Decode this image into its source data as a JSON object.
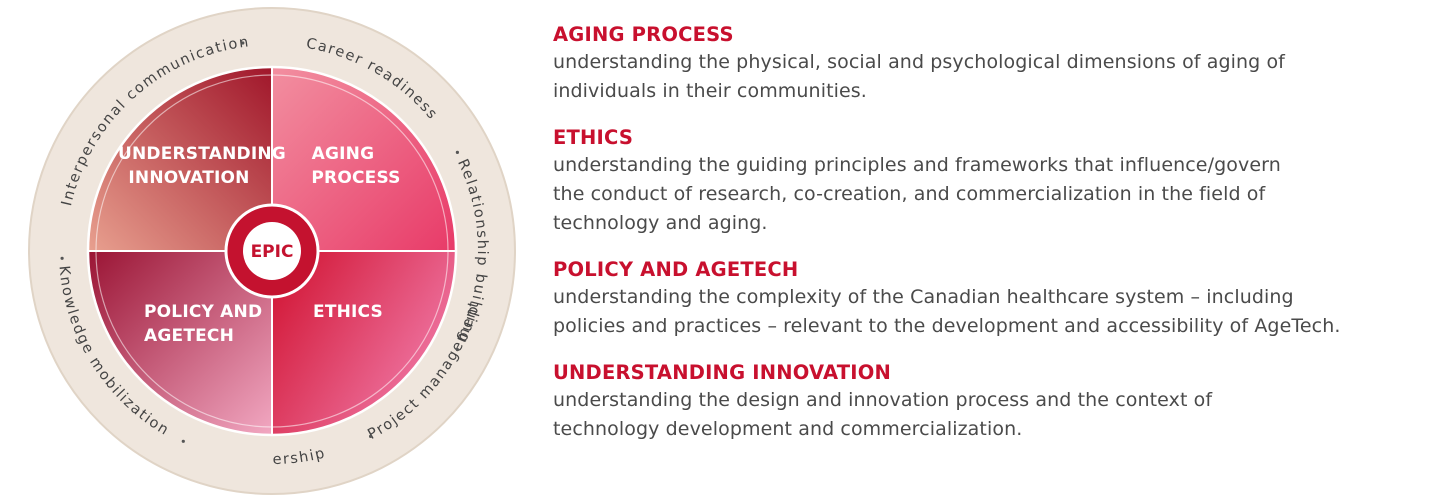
{
  "wheel": {
    "center_label": "EPIC",
    "quadrants": [
      {
        "id": "understanding-innovation",
        "lines": [
          "UNDERSTANDING",
          "INNOVATION"
        ]
      },
      {
        "id": "aging-process",
        "lines": [
          "AGING",
          "PROCESS"
        ]
      },
      {
        "id": "policy-agetech",
        "lines": [
          "POLICY AND",
          "AGETECH"
        ]
      },
      {
        "id": "ethics",
        "lines": [
          "ETHICS"
        ]
      }
    ],
    "ring_skills": [
      "Career readiness",
      "Relationship building",
      "Project management",
      "Leadership",
      "Knowledge mobilization",
      "Interpersonal communication"
    ],
    "colors": {
      "ring": "#efe6dd",
      "ring_border": "#e0d4c6",
      "divider": "#ffffff",
      "center_accent": "#c4122f",
      "q_innovation": [
        "#e8a08f",
        "#a0162a"
      ],
      "q_aging": [
        "#f28fa0",
        "#e83a68"
      ],
      "q_policy": [
        "#9a1434",
        "#f2a8c2"
      ],
      "q_ethics": [
        "#d0102e",
        "#f07aa8"
      ]
    }
  },
  "definitions": [
    {
      "title": "AGING PROCESS",
      "lines": [
        "understanding the physical, social and psychological dimensions of aging of",
        "individuals in their communities."
      ]
    },
    {
      "title": "ETHICS",
      "lines": [
        "understanding the guiding principles and frameworks that influence/govern",
        "the conduct of research, co-creation, and commercialization in the field of",
        "technology and aging."
      ]
    },
    {
      "title": "POLICY AND AGETECH",
      "lines": [
        "understanding the complexity of the Canadian healthcare system – including",
        "policies and practices – relevant to the development and accessibility of AgeTech."
      ]
    },
    {
      "title": "UNDERSTANDING INNOVATION",
      "lines": [
        "understanding the design and innovation process and the context of",
        "technology development and commercialization."
      ]
    }
  ]
}
